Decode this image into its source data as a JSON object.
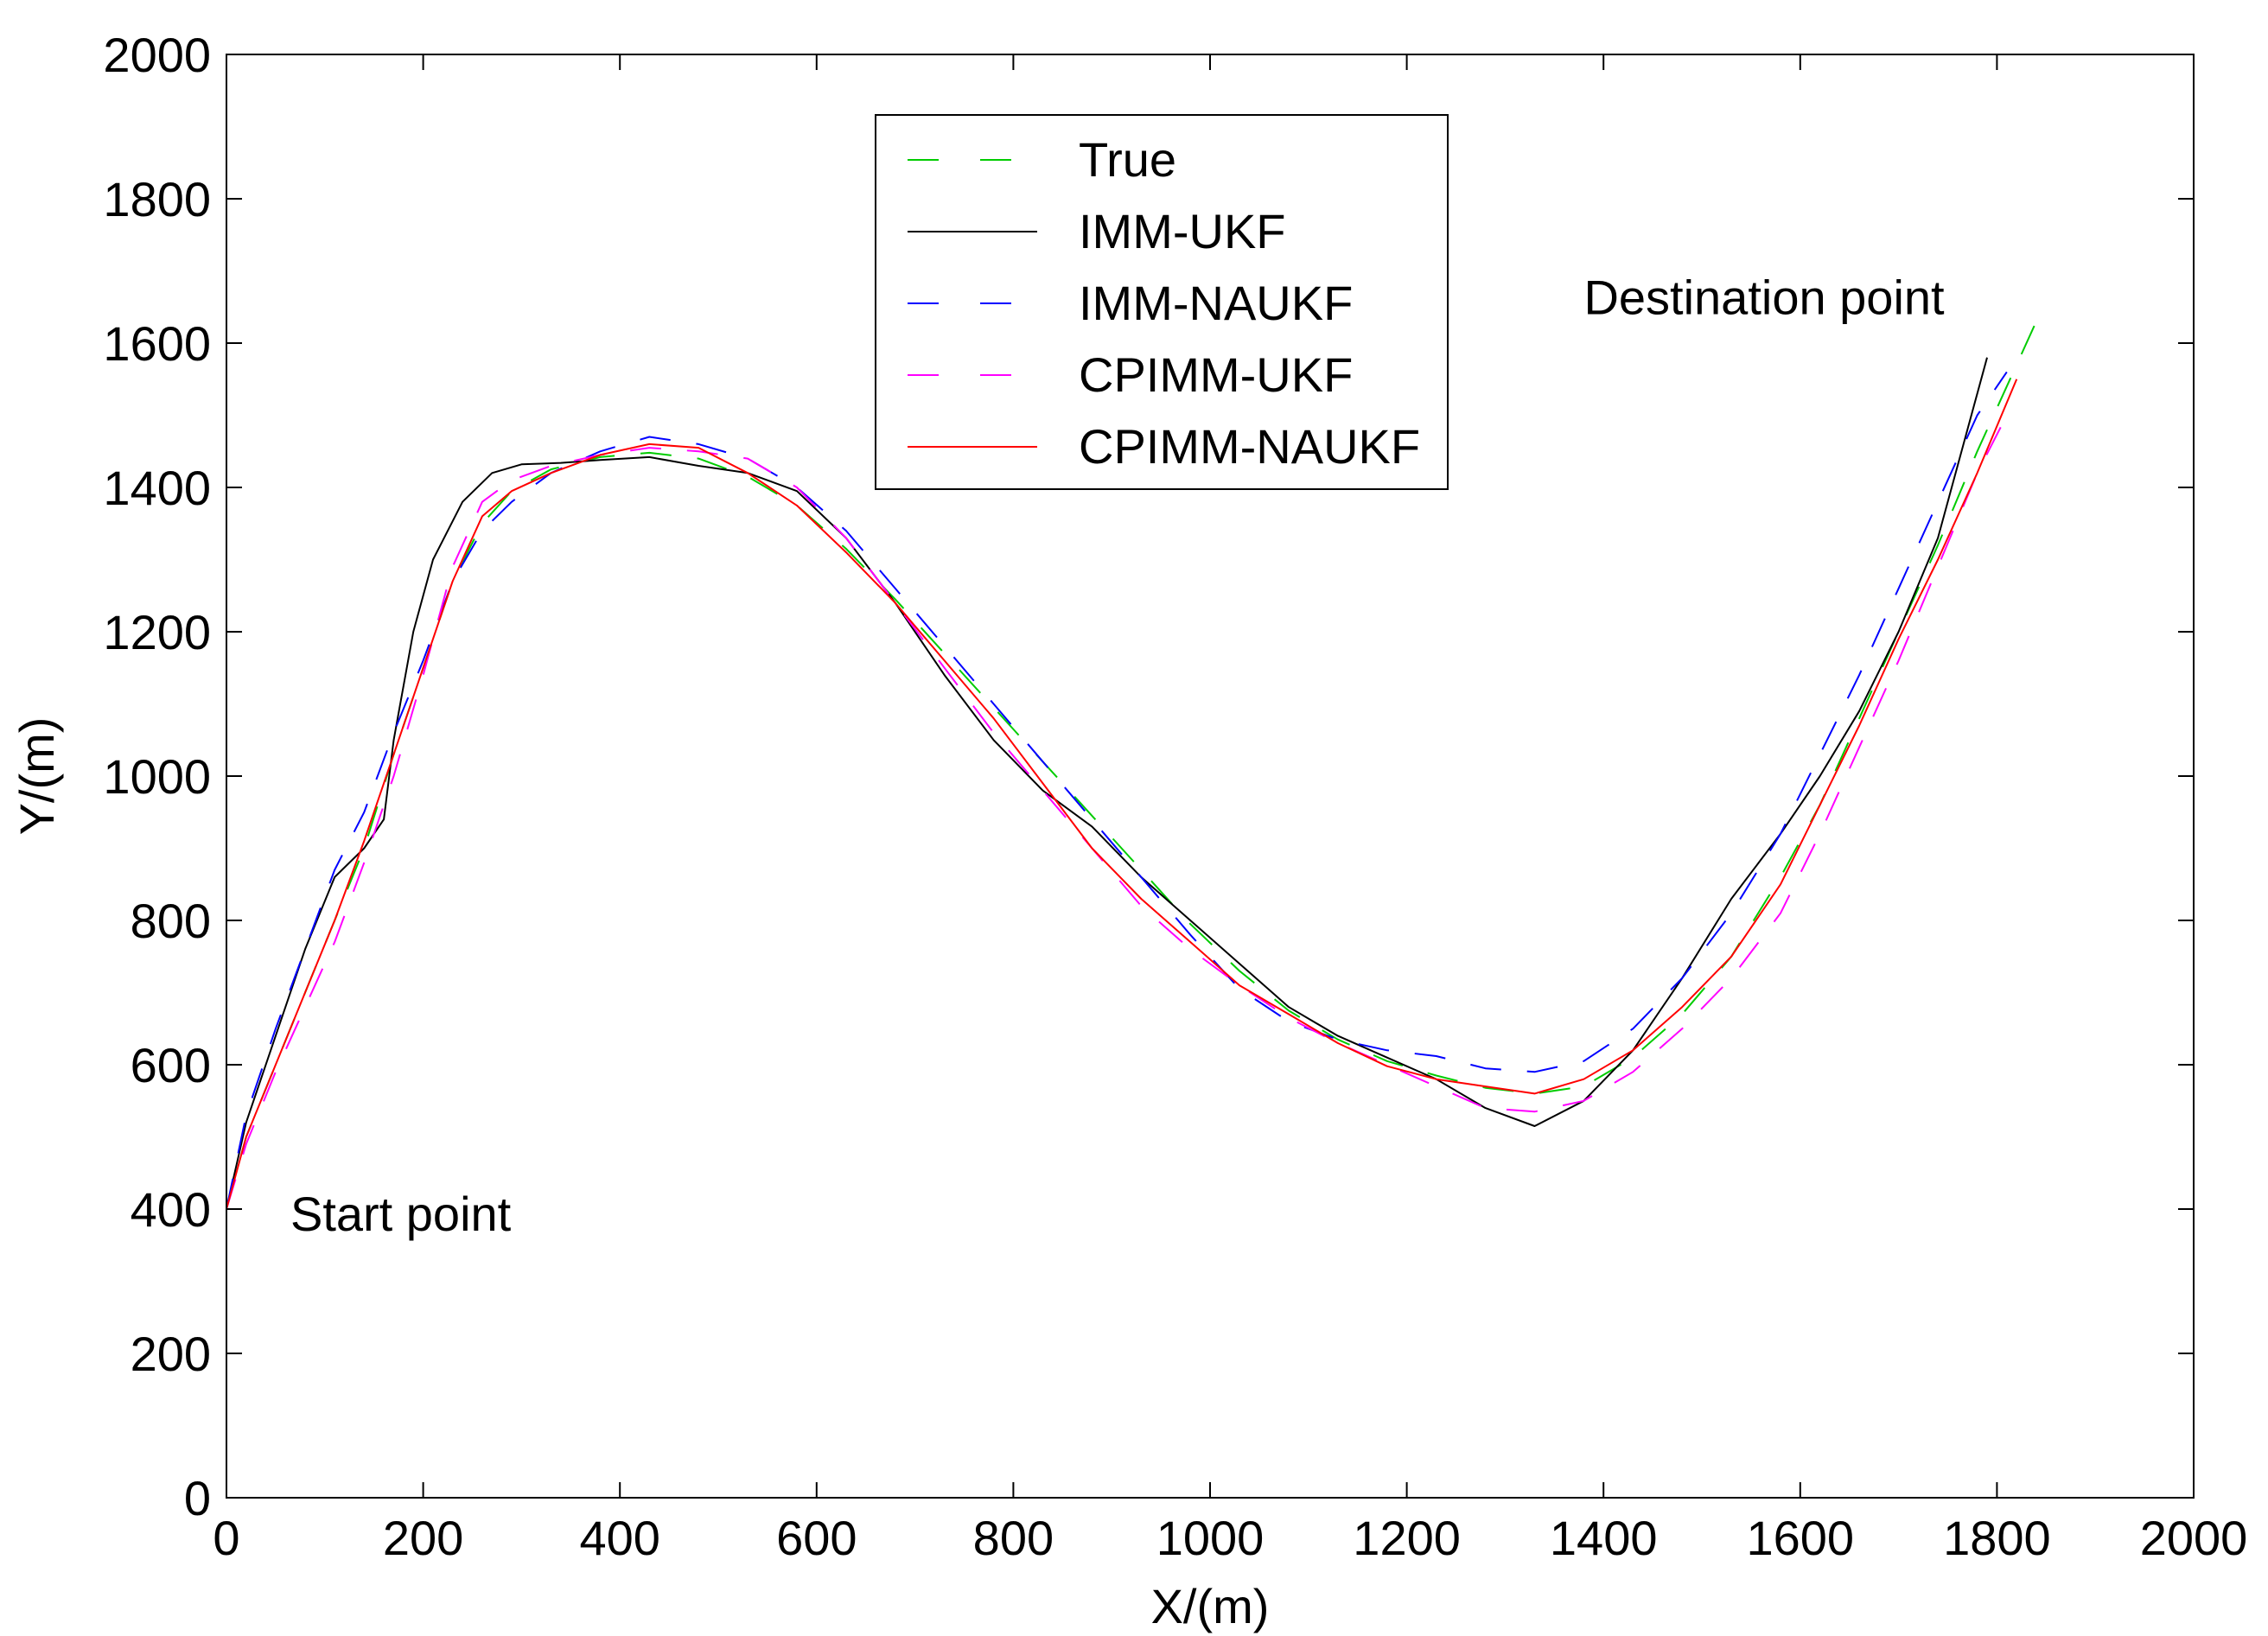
{
  "chart_data": {
    "type": "line",
    "title": "",
    "xlabel": "X/(m)",
    "ylabel": "Y/(m)",
    "xlim": [
      0,
      2000
    ],
    "ylim": [
      0,
      2000
    ],
    "xticks": [
      0,
      200,
      400,
      600,
      800,
      1000,
      1200,
      1400,
      1600,
      1800,
      2000
    ],
    "yticks": [
      0,
      200,
      400,
      600,
      800,
      1000,
      1200,
      1400,
      1600,
      1800,
      2000
    ],
    "grid": false,
    "legend_position": "top-center",
    "annotations": [
      {
        "text": "Start point",
        "x": 65,
        "y": 370
      },
      {
        "text": "Destination point",
        "x": 1380,
        "y": 1640
      }
    ],
    "series": [
      {
        "name": "True",
        "color": "#00cc00",
        "style": "dash",
        "x": [
          0,
          20,
          50,
          80,
          110,
          140,
          170,
          200,
          230,
          260,
          290,
          330,
          380,
          430,
          480,
          530,
          580,
          630,
          680,
          730,
          780,
          830,
          880,
          930,
          980,
          1030,
          1080,
          1130,
          1180,
          1230,
          1280,
          1330,
          1380,
          1430,
          1480,
          1530,
          1580,
          1620,
          1660,
          1700,
          1740,
          1780,
          1810,
          1840
        ],
        "y": [
          400,
          500,
          600,
          700,
          800,
          900,
          1030,
          1150,
          1270,
          1350,
          1395,
          1425,
          1442,
          1448,
          1440,
          1415,
          1375,
          1315,
          1245,
          1170,
          1095,
          1020,
          945,
          870,
          795,
          730,
          675,
          635,
          605,
          585,
          568,
          560,
          570,
          610,
          670,
          750,
          860,
          960,
          1080,
          1200,
          1320,
          1450,
          1540,
          1630
        ]
      },
      {
        "name": "IMM-UKF",
        "color": "#000000",
        "style": "solid",
        "x": [
          0,
          20,
          50,
          80,
          110,
          140,
          160,
          170,
          190,
          210,
          240,
          270,
          300,
          340,
          380,
          430,
          480,
          530,
          580,
          630,
          680,
          730,
          780,
          830,
          880,
          930,
          980,
          1030,
          1080,
          1130,
          1180,
          1230,
          1280,
          1330,
          1380,
          1430,
          1480,
          1530,
          1580,
          1620,
          1660,
          1700,
          1740,
          1790
        ],
        "y": [
          400,
          520,
          640,
          760,
          860,
          900,
          940,
          1050,
          1200,
          1300,
          1380,
          1420,
          1432,
          1434,
          1438,
          1442,
          1430,
          1420,
          1395,
          1330,
          1240,
          1140,
          1050,
          980,
          930,
          860,
          800,
          740,
          680,
          640,
          610,
          580,
          540,
          515,
          550,
          620,
          720,
          830,
          920,
          1000,
          1090,
          1200,
          1330,
          1580
        ]
      },
      {
        "name": "IMM-NAUKF",
        "color": "#0000ff",
        "style": "dash",
        "x": [
          0,
          20,
          50,
          80,
          110,
          140,
          170,
          200,
          230,
          260,
          290,
          330,
          380,
          430,
          480,
          530,
          580,
          630,
          680,
          730,
          780,
          830,
          880,
          930,
          980,
          1030,
          1080,
          1130,
          1180,
          1230,
          1280,
          1330,
          1380,
          1430,
          1480,
          1530,
          1580,
          1620,
          1660,
          1700,
          1740,
          1780,
          1810
        ],
        "y": [
          400,
          530,
          650,
          760,
          870,
          950,
          1060,
          1160,
          1270,
          1340,
          1380,
          1420,
          1450,
          1470,
          1460,
          1440,
          1400,
          1340,
          1260,
          1180,
          1100,
          1020,
          940,
          860,
          780,
          705,
          660,
          635,
          620,
          612,
          595,
          590,
          605,
          650,
          720,
          810,
          920,
          1030,
          1140,
          1260,
          1380,
          1500,
          1560
        ]
      },
      {
        "name": "CPIMM-UKF",
        "color": "#ff00ff",
        "style": "dash",
        "x": [
          0,
          20,
          50,
          80,
          110,
          140,
          170,
          200,
          230,
          260,
          290,
          330,
          380,
          430,
          480,
          530,
          580,
          630,
          680,
          730,
          780,
          830,
          880,
          930,
          980,
          1030,
          1080,
          1130,
          1180,
          1230,
          1280,
          1330,
          1380,
          1430,
          1480,
          1530,
          1580,
          1620,
          1660,
          1700,
          1740,
          1780,
          1810
        ],
        "y": [
          400,
          490,
          590,
          680,
          770,
          880,
          1000,
          1140,
          1290,
          1380,
          1410,
          1430,
          1445,
          1455,
          1450,
          1440,
          1400,
          1330,
          1240,
          1150,
          1060,
          980,
          900,
          820,
          760,
          710,
          665,
          630,
          600,
          570,
          540,
          535,
          550,
          590,
          650,
          720,
          810,
          920,
          1040,
          1160,
          1290,
          1420,
          1500
        ]
      },
      {
        "name": "CPIMM-NAUKF",
        "color": "#ff0000",
        "style": "solid",
        "x": [
          0,
          20,
          50,
          80,
          110,
          140,
          170,
          200,
          230,
          260,
          290,
          330,
          380,
          430,
          480,
          530,
          580,
          630,
          680,
          730,
          780,
          830,
          880,
          930,
          980,
          1030,
          1080,
          1130,
          1180,
          1230,
          1280,
          1330,
          1380,
          1430,
          1480,
          1530,
          1580,
          1620,
          1660,
          1700,
          1740,
          1780,
          1820
        ],
        "y": [
          400,
          500,
          600,
          700,
          800,
          910,
          1030,
          1150,
          1270,
          1360,
          1395,
          1420,
          1445,
          1460,
          1455,
          1420,
          1375,
          1310,
          1240,
          1160,
          1080,
          990,
          900,
          830,
          770,
          710,
          670,
          630,
          598,
          580,
          570,
          560,
          580,
          620,
          680,
          750,
          850,
          960,
          1070,
          1190,
          1300,
          1420,
          1550
        ]
      }
    ]
  }
}
